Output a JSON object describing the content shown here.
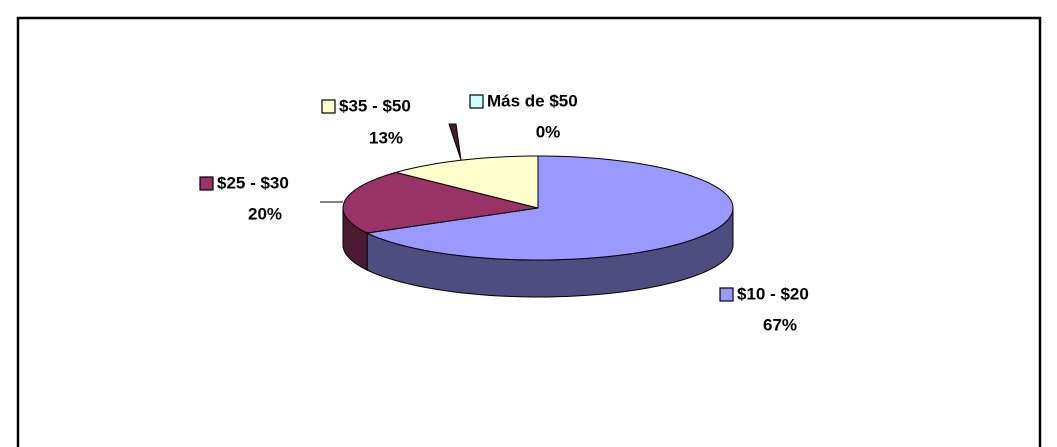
{
  "chart_data": {
    "type": "pie3d",
    "categories": [
      "$10 - $20",
      "$25 - $30",
      "$35 - $50",
      "Más de $50"
    ],
    "values": [
      67,
      20,
      13,
      0
    ],
    "value_labels": [
      "67%",
      "20%",
      "13%",
      "0%"
    ],
    "colors": [
      "#9999ff",
      "#993366",
      "#ffffcc",
      "#ccffff"
    ]
  }
}
